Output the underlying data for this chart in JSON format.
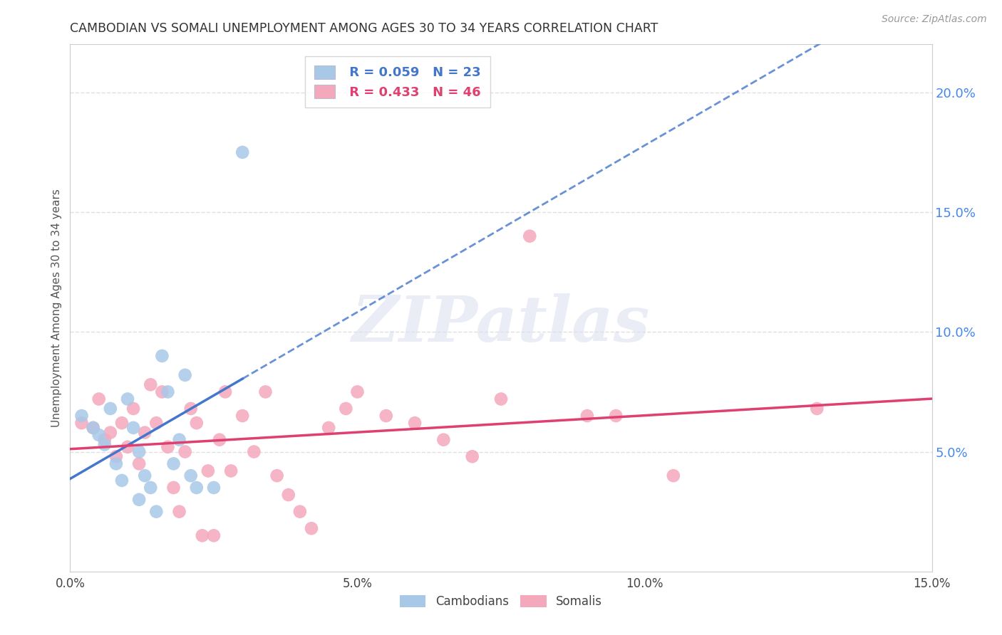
{
  "title": "CAMBODIAN VS SOMALI UNEMPLOYMENT AMONG AGES 30 TO 34 YEARS CORRELATION CHART",
  "source": "Source: ZipAtlas.com",
  "ylabel": "Unemployment Among Ages 30 to 34 years",
  "xlim": [
    0.0,
    0.15
  ],
  "ylim": [
    0.0,
    0.22
  ],
  "xticks": [
    0.0,
    0.05,
    0.1,
    0.15
  ],
  "xtick_labels": [
    "0.0%",
    "5.0%",
    "10.0%",
    "15.0%"
  ],
  "yticks": [
    0.05,
    0.1,
    0.15,
    0.2
  ],
  "ytick_labels": [
    "5.0%",
    "10.0%",
    "15.0%",
    "20.0%"
  ],
  "cambodian_color": "#a8c8e8",
  "somali_color": "#f4a8bc",
  "cambodian_line_color": "#4477cc",
  "somali_line_color": "#e04070",
  "grid_color": "#e0e0e0",
  "grid_style": "--",
  "background_color": "#ffffff",
  "watermark_text": "ZIPatlas",
  "legend_r_cambodian": "R = 0.059",
  "legend_n_cambodian": "N = 23",
  "legend_r_somali": "R = 0.433",
  "legend_n_somali": "N = 46",
  "cambodian_x": [
    0.002,
    0.004,
    0.005,
    0.006,
    0.007,
    0.008,
    0.009,
    0.01,
    0.011,
    0.012,
    0.012,
    0.013,
    0.014,
    0.015,
    0.016,
    0.017,
    0.018,
    0.019,
    0.02,
    0.021,
    0.022,
    0.025,
    0.03
  ],
  "cambodian_y": [
    0.065,
    0.06,
    0.057,
    0.053,
    0.068,
    0.045,
    0.038,
    0.072,
    0.06,
    0.05,
    0.03,
    0.04,
    0.035,
    0.025,
    0.09,
    0.075,
    0.045,
    0.055,
    0.082,
    0.04,
    0.035,
    0.035,
    0.175
  ],
  "somali_x": [
    0.002,
    0.004,
    0.005,
    0.006,
    0.007,
    0.008,
    0.009,
    0.01,
    0.011,
    0.012,
    0.013,
    0.014,
    0.015,
    0.016,
    0.017,
    0.018,
    0.019,
    0.02,
    0.021,
    0.022,
    0.023,
    0.024,
    0.025,
    0.026,
    0.027,
    0.028,
    0.03,
    0.032,
    0.034,
    0.036,
    0.038,
    0.04,
    0.042,
    0.045,
    0.048,
    0.05,
    0.055,
    0.06,
    0.065,
    0.07,
    0.075,
    0.08,
    0.09,
    0.095,
    0.105,
    0.13
  ],
  "somali_y": [
    0.062,
    0.06,
    0.072,
    0.055,
    0.058,
    0.048,
    0.062,
    0.052,
    0.068,
    0.045,
    0.058,
    0.078,
    0.062,
    0.075,
    0.052,
    0.035,
    0.025,
    0.05,
    0.068,
    0.062,
    0.015,
    0.042,
    0.015,
    0.055,
    0.075,
    0.042,
    0.065,
    0.05,
    0.075,
    0.04,
    0.032,
    0.025,
    0.018,
    0.06,
    0.068,
    0.075,
    0.065,
    0.062,
    0.055,
    0.048,
    0.072,
    0.14,
    0.065,
    0.065,
    0.04,
    0.068
  ]
}
